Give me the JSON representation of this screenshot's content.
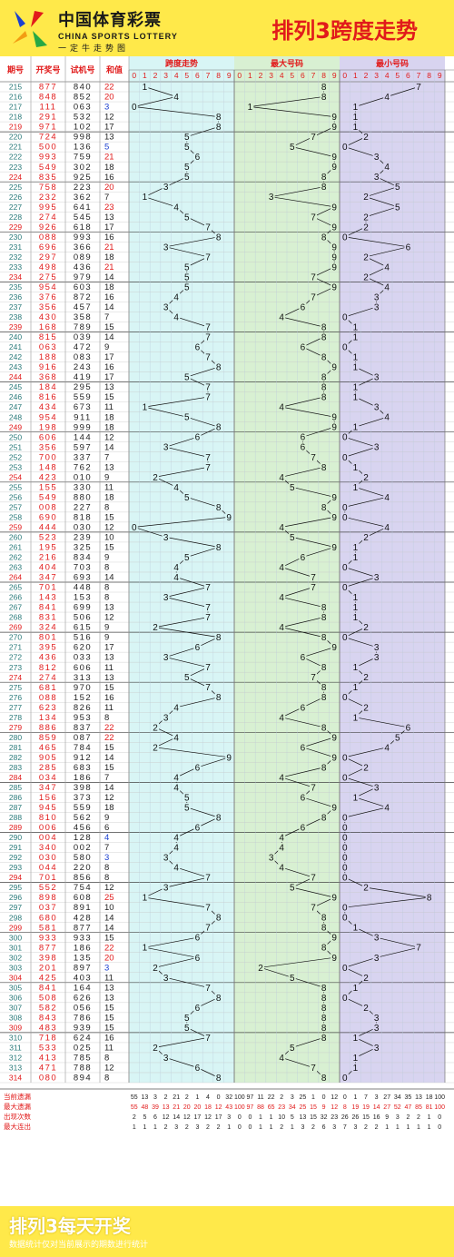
{
  "header": {
    "logo_cn": "中国体育彩票",
    "logo_en": "CHINA SPORTS LOTTERY",
    "logo_sub": "一定牛走势图",
    "title": "排列3跨度走势"
  },
  "columns": {
    "period": "期号",
    "winning": "开奖号",
    "trial": "试机号",
    "sum": "和值",
    "span": "跨度走势",
    "max": "最大号码",
    "min": "最小号码"
  },
  "digits": [
    "0",
    "1",
    "2",
    "3",
    "4",
    "5",
    "6",
    "7",
    "8",
    "9"
  ],
  "colors": {
    "red": "#e11b1b",
    "blue": "#1a3fd0",
    "span_bg": "#d8f5f5",
    "max_bg": "#d8f0d2",
    "min_bg": "#d8d4f0",
    "header": "#ffe94a"
  },
  "chart_data": {
    "type": "table",
    "rows": [
      [
        "215",
        "877",
        "840",
        "22"
      ],
      [
        "216",
        "848",
        "852",
        "20"
      ],
      [
        "217",
        "111",
        "063",
        "3"
      ],
      [
        "218",
        "291",
        "532",
        "12"
      ],
      [
        "219",
        "971",
        "102",
        "17"
      ],
      [
        "220",
        "724",
        "998",
        "13"
      ],
      [
        "221",
        "500",
        "136",
        "5"
      ],
      [
        "222",
        "993",
        "759",
        "21"
      ],
      [
        "223",
        "549",
        "302",
        "18"
      ],
      [
        "224",
        "835",
        "925",
        "16"
      ],
      [
        "225",
        "758",
        "223",
        "20"
      ],
      [
        "226",
        "232",
        "362",
        "7"
      ],
      [
        "227",
        "995",
        "641",
        "23"
      ],
      [
        "228",
        "274",
        "545",
        "13"
      ],
      [
        "229",
        "926",
        "618",
        "17"
      ],
      [
        "230",
        "088",
        "993",
        "16"
      ],
      [
        "231",
        "696",
        "366",
        "21"
      ],
      [
        "232",
        "297",
        "089",
        "18"
      ],
      [
        "233",
        "498",
        "436",
        "21"
      ],
      [
        "234",
        "275",
        "979",
        "14"
      ],
      [
        "235",
        "954",
        "603",
        "18"
      ],
      [
        "236",
        "376",
        "872",
        "16"
      ],
      [
        "237",
        "356",
        "457",
        "14"
      ],
      [
        "238",
        "430",
        "358",
        "7"
      ],
      [
        "239",
        "168",
        "789",
        "15"
      ],
      [
        "240",
        "815",
        "039",
        "14"
      ],
      [
        "241",
        "063",
        "472",
        "9"
      ],
      [
        "242",
        "188",
        "083",
        "17"
      ],
      [
        "243",
        "916",
        "243",
        "16"
      ],
      [
        "244",
        "368",
        "419",
        "17"
      ],
      [
        "245",
        "184",
        "295",
        "13"
      ],
      [
        "246",
        "816",
        "559",
        "15"
      ],
      [
        "247",
        "434",
        "673",
        "11"
      ],
      [
        "248",
        "954",
        "911",
        "18"
      ],
      [
        "249",
        "198",
        "999",
        "18"
      ],
      [
        "250",
        "606",
        "144",
        "12"
      ],
      [
        "251",
        "356",
        "597",
        "14"
      ],
      [
        "252",
        "700",
        "337",
        "7"
      ],
      [
        "253",
        "148",
        "762",
        "13"
      ],
      [
        "254",
        "423",
        "010",
        "9"
      ],
      [
        "255",
        "155",
        "330",
        "11"
      ],
      [
        "256",
        "549",
        "880",
        "18"
      ],
      [
        "257",
        "008",
        "227",
        "8"
      ],
      [
        "258",
        "690",
        "818",
        "15"
      ],
      [
        "259",
        "444",
        "030",
        "12"
      ],
      [
        "260",
        "523",
        "239",
        "10"
      ],
      [
        "261",
        "195",
        "325",
        "15"
      ],
      [
        "262",
        "216",
        "834",
        "9"
      ],
      [
        "263",
        "404",
        "703",
        "8"
      ],
      [
        "264",
        "347",
        "693",
        "14"
      ],
      [
        "265",
        "701",
        "448",
        "8"
      ],
      [
        "266",
        "143",
        "153",
        "8"
      ],
      [
        "267",
        "841",
        "699",
        "13"
      ],
      [
        "268",
        "831",
        "506",
        "12"
      ],
      [
        "269",
        "324",
        "615",
        "9"
      ],
      [
        "270",
        "801",
        "516",
        "9"
      ],
      [
        "271",
        "395",
        "620",
        "17"
      ],
      [
        "272",
        "436",
        "033",
        "13"
      ],
      [
        "273",
        "812",
        "606",
        "11"
      ],
      [
        "274",
        "274",
        "313",
        "13"
      ],
      [
        "275",
        "681",
        "970",
        "15"
      ],
      [
        "276",
        "088",
        "152",
        "16"
      ],
      [
        "277",
        "623",
        "826",
        "11"
      ],
      [
        "278",
        "134",
        "953",
        "8"
      ],
      [
        "279",
        "886",
        "837",
        "22"
      ],
      [
        "280",
        "859",
        "087",
        "22"
      ],
      [
        "281",
        "465",
        "784",
        "15"
      ],
      [
        "282",
        "905",
        "912",
        "14"
      ],
      [
        "283",
        "285",
        "683",
        "15"
      ],
      [
        "284",
        "034",
        "186",
        "7"
      ],
      [
        "285",
        "347",
        "398",
        "14"
      ],
      [
        "286",
        "156",
        "373",
        "12"
      ],
      [
        "287",
        "945",
        "559",
        "18"
      ],
      [
        "288",
        "810",
        "562",
        "9"
      ],
      [
        "289",
        "006",
        "456",
        "6"
      ],
      [
        "290",
        "004",
        "128",
        "4"
      ],
      [
        "291",
        "340",
        "002",
        "7"
      ],
      [
        "292",
        "030",
        "580",
        "3"
      ],
      [
        "293",
        "044",
        "220",
        "8"
      ],
      [
        "294",
        "701",
        "856",
        "8"
      ],
      [
        "295",
        "552",
        "754",
        "12"
      ],
      [
        "296",
        "898",
        "608",
        "25"
      ],
      [
        "297",
        "037",
        "891",
        "10"
      ],
      [
        "298",
        "680",
        "428",
        "14"
      ],
      [
        "299",
        "581",
        "877",
        "14"
      ],
      [
        "300",
        "933",
        "933",
        "15"
      ],
      [
        "301",
        "877",
        "186",
        "22"
      ],
      [
        "302",
        "398",
        "135",
        "20"
      ],
      [
        "303",
        "201",
        "897",
        "3"
      ],
      [
        "304",
        "425",
        "403",
        "11"
      ],
      [
        "305",
        "841",
        "164",
        "13"
      ],
      [
        "306",
        "508",
        "626",
        "13"
      ],
      [
        "307",
        "582",
        "056",
        "15"
      ],
      [
        "308",
        "843",
        "786",
        "15"
      ],
      [
        "309",
        "483",
        "939",
        "15"
      ],
      [
        "310",
        "718",
        "624",
        "16"
      ],
      [
        "311",
        "533",
        "025",
        "11"
      ],
      [
        "312",
        "413",
        "785",
        "8"
      ],
      [
        "313",
        "471",
        "788",
        "12"
      ],
      [
        "314",
        "080",
        "894",
        "8"
      ]
    ],
    "stats": [
      {
        "label": "当前遗漏",
        "span": [
          "55",
          "13",
          "3",
          "2",
          "21",
          "2",
          "1",
          "4",
          "0",
          "32"
        ],
        "max": [
          "100",
          "97",
          "11",
          "22",
          "2",
          "3",
          "25",
          "1",
          "0",
          "12"
        ],
        "min": [
          "0",
          "1",
          "7",
          "3",
          "27",
          "34",
          "35",
          "13",
          "18",
          "100"
        ]
      },
      {
        "label": "最大遗漏",
        "span": [
          "55",
          "48",
          "39",
          "13",
          "21",
          "20",
          "20",
          "18",
          "12",
          "43"
        ],
        "max": [
          "100",
          "97",
          "88",
          "65",
          "23",
          "34",
          "25",
          "15",
          "9",
          "12"
        ],
        "min": [
          "8",
          "19",
          "19",
          "14",
          "27",
          "52",
          "47",
          "85",
          "81",
          "100"
        ]
      },
      {
        "label": "出现次数",
        "span": [
          "2",
          "5",
          "6",
          "12",
          "14",
          "12",
          "17",
          "12",
          "17",
          "3"
        ],
        "max": [
          "0",
          "0",
          "1",
          "1",
          "10",
          "5",
          "13",
          "15",
          "32",
          "23"
        ],
        "min": [
          "26",
          "26",
          "15",
          "16",
          "9",
          "3",
          "2",
          "2",
          "1",
          "0"
        ]
      },
      {
        "label": "最大连出",
        "span": [
          "1",
          "1",
          "1",
          "2",
          "3",
          "2",
          "3",
          "2",
          "2",
          "1"
        ],
        "max": [
          "0",
          "0",
          "1",
          "1",
          "2",
          "1",
          "3",
          "2",
          "6",
          "3"
        ],
        "min": [
          "7",
          "3",
          "2",
          "2",
          "1",
          "1",
          "1",
          "1",
          "1",
          "0"
        ]
      }
    ]
  },
  "footer": {
    "title": "排列3每天开奖",
    "note": "数据统计仅对当前展示的期数进行统计"
  }
}
